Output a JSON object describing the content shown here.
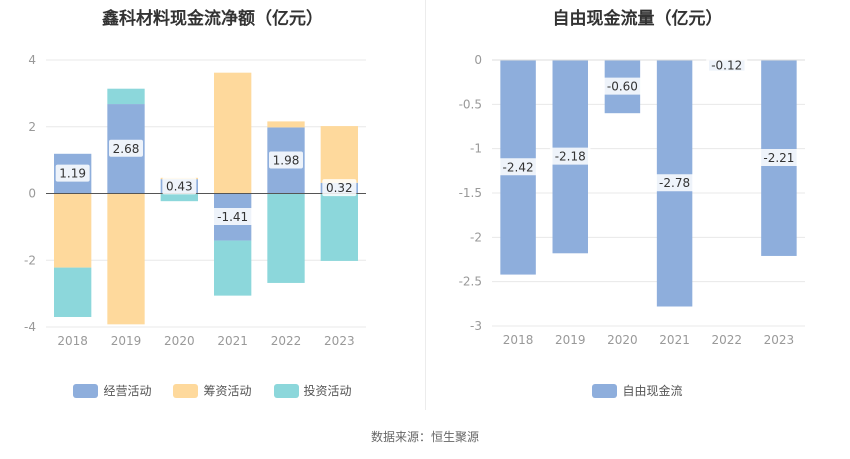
{
  "chart_data": [
    {
      "type": "bar",
      "stacked": true,
      "title": "鑫科材料现金流净额（亿元）",
      "categories": [
        "2018",
        "2019",
        "2020",
        "2021",
        "2022",
        "2023"
      ],
      "ylim": [
        -4,
        4
      ],
      "yticks": [
        -4,
        -2,
        0,
        2,
        4
      ],
      "grid": true,
      "legend_position": "bottom",
      "series": [
        {
          "name": "经营活动",
          "color": "#8eaedc",
          "values": [
            1.19,
            2.68,
            0.43,
            -1.41,
            1.98,
            0.32
          ],
          "labels": [
            "1.19",
            "2.68",
            "0.43",
            "-1.41",
            "1.98",
            "0.32"
          ]
        },
        {
          "name": "筹资活动",
          "color": "#fed99c",
          "values": [
            -2.22,
            -3.92,
            0.04,
            3.62,
            0.18,
            1.7
          ]
        },
        {
          "name": "投资活动",
          "color": "#8cd7db",
          "values": [
            -1.48,
            0.46,
            -0.23,
            -1.65,
            -2.68,
            -2.02
          ]
        }
      ]
    },
    {
      "type": "bar",
      "title": "自由现金流量（亿元）",
      "categories": [
        "2018",
        "2019",
        "2020",
        "2021",
        "2022",
        "2023"
      ],
      "ylim": [
        -3,
        0
      ],
      "yticks": [
        0,
        -0.5,
        -1,
        -1.5,
        -2,
        -2.5,
        -3
      ],
      "grid": true,
      "legend_position": "bottom",
      "series": [
        {
          "name": "自由现金流",
          "color": "#8eaedc",
          "values": [
            -2.42,
            -2.18,
            -0.6,
            -2.78,
            -0.12,
            -2.21
          ],
          "labels": [
            "-2.42",
            "-2.18",
            "-0.60",
            "-2.78",
            "-0.12",
            "-2.21"
          ]
        }
      ]
    }
  ],
  "footer": {
    "source": "数据来源：恒生聚源"
  }
}
